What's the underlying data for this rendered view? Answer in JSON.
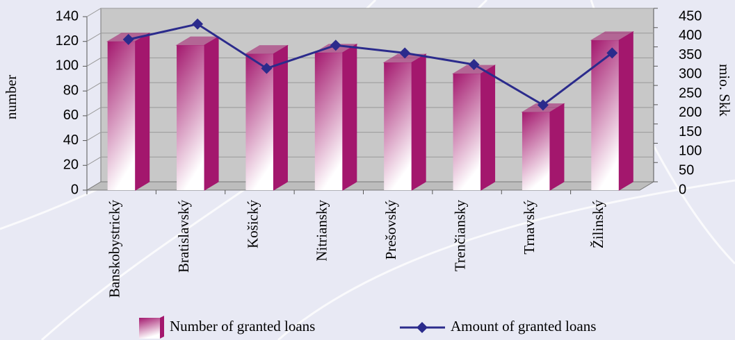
{
  "chart_data": {
    "type": "bar",
    "categories": [
      "Banskobystrický",
      "Bratislavský",
      "Košický",
      "Nitriansky",
      "Prešovský",
      "Trenčiansky",
      "Trnavský",
      "Žilinský"
    ],
    "series": [
      {
        "name": "Number of granted loans",
        "type": "bar",
        "color": "#a3176d",
        "values": [
          120,
          117,
          110,
          111,
          103,
          94,
          63,
          121
        ]
      },
      {
        "name": "Amount of granted loans",
        "type": "line",
        "axis": "y2",
        "color": "#2b2b8c",
        "values": [
          380,
          420,
          305,
          365,
          345,
          315,
          210,
          345
        ]
      }
    ],
    "ylabel": "number",
    "y2label": "mio. Skk",
    "ylim": [
      0,
      140
    ],
    "yticks": [
      0,
      20,
      40,
      60,
      80,
      100,
      120,
      140
    ],
    "y2lim": [
      0,
      450
    ],
    "y2ticks": [
      0,
      50,
      100,
      150,
      200,
      250,
      300,
      350,
      400,
      450
    ],
    "grid": true
  }
}
